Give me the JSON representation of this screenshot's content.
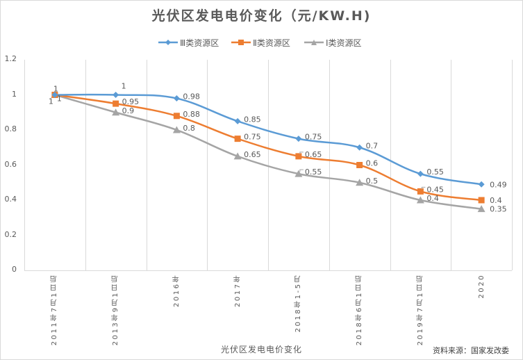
{
  "chart_data": {
    "type": "line",
    "title": "光伏区发电电价变化（元/KW.H)",
    "xlabel": "光伏区发电电价变化",
    "ylabel": "",
    "source_note": "资料来源：国家发改委",
    "categories": [
      "2011年7月1日后",
      "2013年9月1日后",
      "2016年",
      "2017年",
      "2018年1-5月",
      "2018年6月1日后",
      "2019年7月1日后",
      "2020"
    ],
    "yticks": [
      "0",
      "0.2",
      "0.4",
      "0.6",
      "0.8",
      "1",
      "1.2"
    ],
    "ylim": [
      0,
      1.2
    ],
    "grid": "vertical",
    "legend_position": "top",
    "series": [
      {
        "name": "Ⅲ类资源区",
        "color": "#5b9bd5",
        "marker": "diamond",
        "values": [
          1,
          1,
          0.98,
          0.85,
          0.75,
          0.7,
          0.55,
          0.49
        ],
        "labels": [
          "1",
          "1",
          "0.98",
          "0.85",
          "0.75",
          "0.7",
          "0.55",
          "0.49"
        ]
      },
      {
        "name": "Ⅱ类资源区",
        "color": "#ed7d31",
        "marker": "square",
        "values": [
          1,
          0.95,
          0.88,
          0.75,
          0.65,
          0.6,
          0.45,
          0.4
        ],
        "labels": [
          "1",
          "0.95",
          "0.88",
          "0.75",
          "0.65",
          "0.6",
          "0.45",
          "0.4"
        ]
      },
      {
        "name": "Ⅰ类资源区",
        "color": "#a5a5a5",
        "marker": "triangle",
        "values": [
          1,
          0.9,
          0.8,
          0.65,
          0.55,
          0.5,
          0.4,
          0.35
        ],
        "labels": [
          "1",
          "0.9",
          "0.8",
          "0.65",
          "0.55",
          "0.5",
          "0.4",
          "0.35"
        ]
      }
    ]
  }
}
